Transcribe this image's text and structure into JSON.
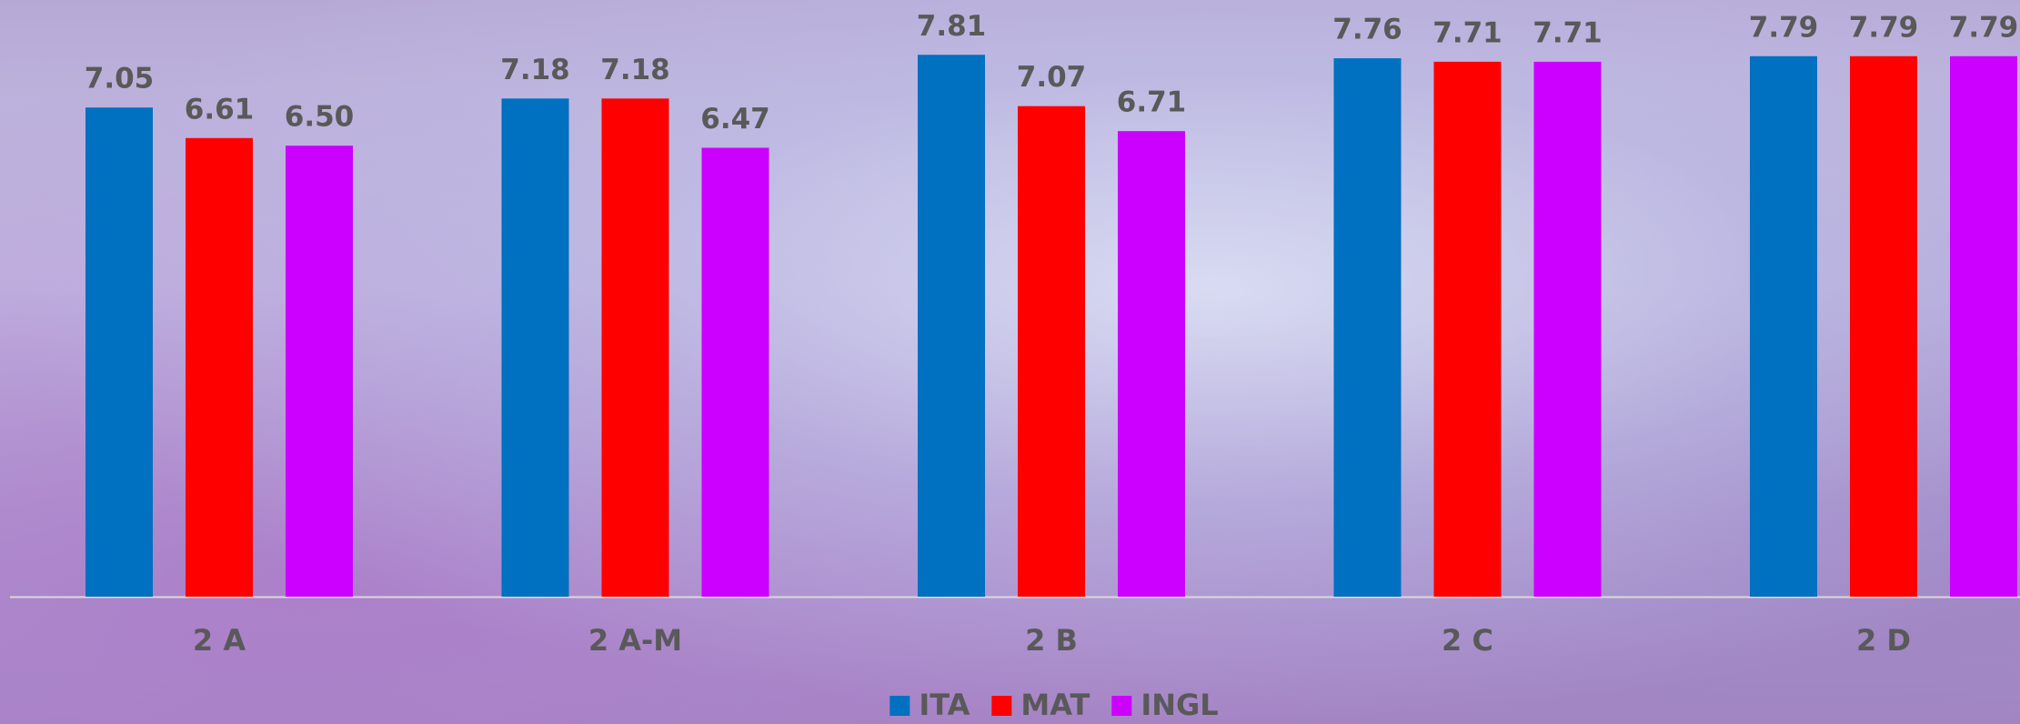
{
  "chart_data": {
    "type": "bar",
    "categories": [
      "2 A",
      "2 A-M",
      "2 B",
      "2 C",
      "2 D"
    ],
    "series": [
      {
        "name": "ITA",
        "color": "#0070c0",
        "values": [
          7.05,
          7.18,
          7.81,
          7.76,
          7.79
        ]
      },
      {
        "name": "MAT",
        "color": "#ff0000",
        "values": [
          6.61,
          7.18,
          7.07,
          7.71,
          7.79
        ]
      },
      {
        "name": "INGL",
        "color": "#cc00ff",
        "values": [
          6.5,
          6.47,
          6.71,
          7.71,
          7.79
        ],
        "value_labels": [
          "6.50",
          "6.47",
          "6.71",
          "7.71",
          "7.79"
        ]
      }
    ],
    "ylim": [
      0,
      8.6
    ],
    "legend": "bottom"
  }
}
